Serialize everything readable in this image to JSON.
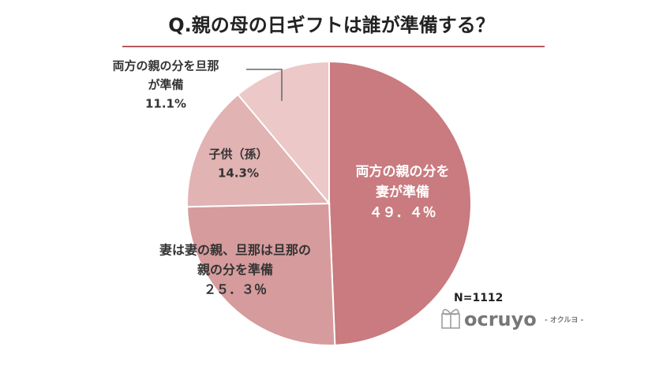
{
  "chart_data": {
    "type": "pie",
    "title": "Q.親の母の日ギフトは誰が準備する？",
    "categories": [
      [
        "両方の親の分を",
        "妻が準備"
      ],
      [
        "妻は妻の親、旦那は旦那の",
        "親の分を準備"
      ],
      [
        "子供（孫）"
      ],
      [
        "両方の親の分を旦那",
        "が準備"
      ]
    ],
    "values": [
      49.4,
      25.3,
      14.3,
      11.1
    ],
    "value_labels": [
      "４９．４％",
      "２５．３％",
      "14.3%",
      "11.1%"
    ],
    "colors": [
      "#c97b7f",
      "#d69b9c",
      "#e2b3b3",
      "#ecc8c9"
    ],
    "label_colors": [
      "#ffffff",
      "#333333",
      "#333333",
      "#333333"
    ],
    "note": "N=1112",
    "logo": {
      "name": "ocruyo",
      "tagline": "- オクルヨ -"
    }
  }
}
